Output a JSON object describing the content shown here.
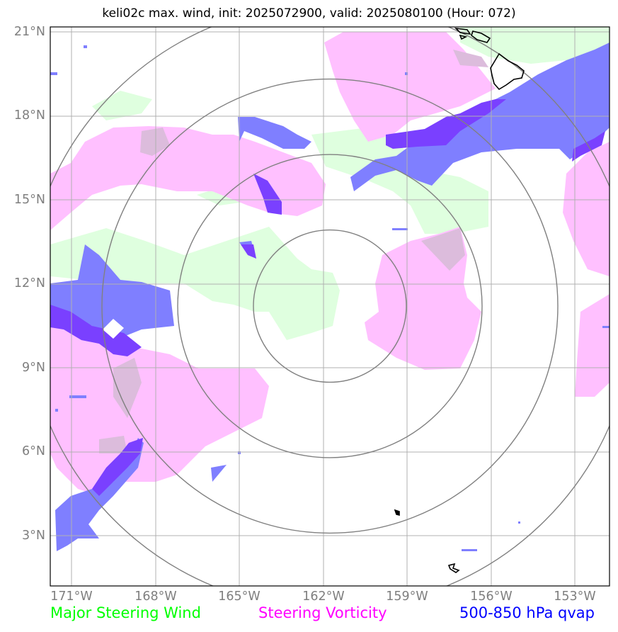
{
  "title": "keli02c max. wind, init: 2025072900, valid: 2025080100 (Hour: 072)",
  "lat_labels": [
    "21°N",
    "18°N",
    "15°N",
    "12°N",
    "9°N",
    "6°N",
    "3°N"
  ],
  "lon_labels": [
    "171°W",
    "168°W",
    "165°W",
    "162°W",
    "159°W",
    "156°W",
    "153°W"
  ],
  "legend": {
    "wind": {
      "label": "Major Steering Wind",
      "color": "#00ff00"
    },
    "vorticity": {
      "label": "Steering Vorticity",
      "color": "#ff00ff"
    },
    "qvap": {
      "label": "500-850 hPa qvap",
      "color": "#0000ff"
    }
  },
  "fill_colors": {
    "wind": "#dfffdf",
    "vorticity": "#ffc0ff",
    "qvap": "#7f7fff",
    "qvap_strong": "#7a40ff",
    "overlap": "#dcbcdc"
  },
  "range_ring_color": "#808080",
  "grid_color": "#b0b0b0"
}
